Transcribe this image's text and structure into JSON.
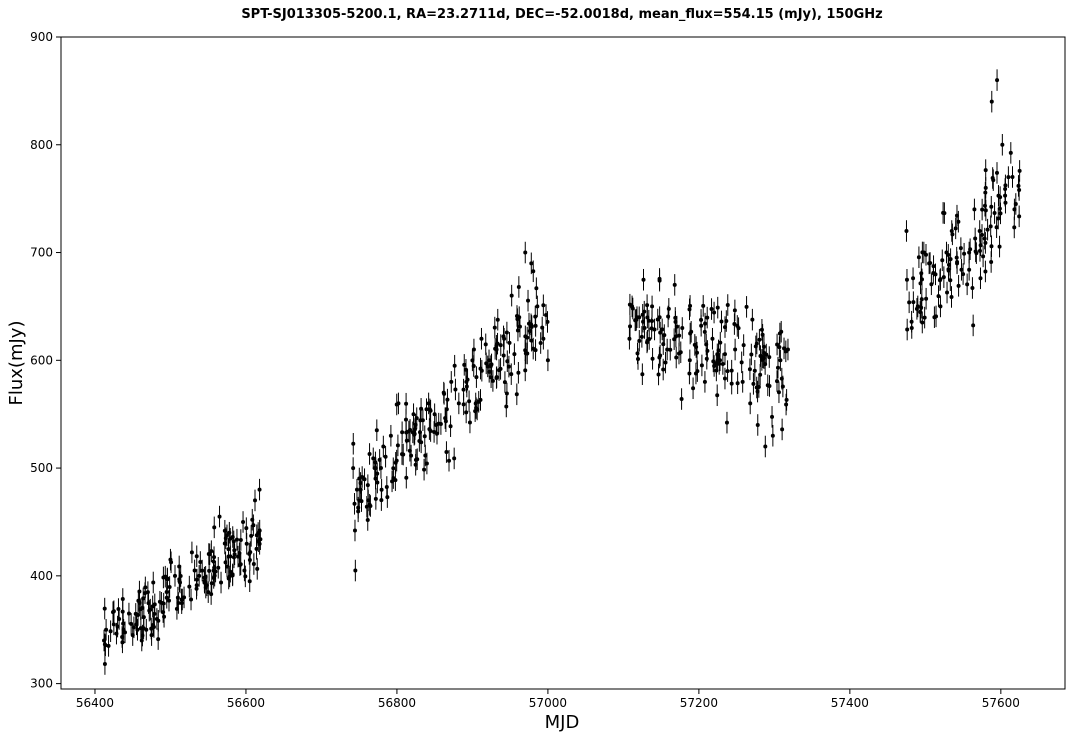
{
  "chart_data": {
    "type": "scatter",
    "title": "SPT-SJ013305-5200.1, RA=23.2711d, DEC=-52.0018d, mean_flux=554.15 (mJy), 150GHz",
    "xlabel": "MJD",
    "ylabel": "Flux(mJy)",
    "xlim": [
      56355,
      57685
    ],
    "ylim": [
      295,
      900
    ],
    "xticks": [
      56400,
      56600,
      56800,
      57000,
      57200,
      57400,
      57600
    ],
    "yticks": [
      300,
      400,
      500,
      600,
      700,
      800,
      900
    ],
    "grid": false,
    "marker_color": "#000000",
    "error_bar": "approximately ±10 mJy per point",
    "segments": [
      {
        "x_start": 56412,
        "x_end": 56620,
        "y_start": 340,
        "y_end": 440,
        "spread": 25
      },
      {
        "x_start": 56742,
        "x_end": 57000,
        "y_start": 470,
        "y_end": 640,
        "spread": 35
      },
      {
        "x_start": 57108,
        "x_end": 57322,
        "y_start": 630,
        "y_end": 590,
        "spread": 40
      },
      {
        "x_start": 57475,
        "x_end": 57625,
        "y_start": 640,
        "y_end": 760,
        "spread": 50
      }
    ],
    "series": [
      {
        "x": [
          56412,
          56418,
          56425,
          56432,
          56438,
          56445,
          56450,
          56455,
          56462,
          56468,
          56475,
          56482,
          56488,
          56495,
          56500,
          56506,
          56512,
          56518,
          56525,
          56532,
          56538,
          56545,
          56552,
          56558,
          56565,
          56572,
          56578,
          56585,
          56592,
          56598,
          56605,
          56612,
          56618,
          56742,
          56752,
          56762,
          56772,
          56782,
          56792,
          56802,
          56812,
          56822,
          56832,
          56842,
          56852,
          56862,
          56872,
          56882,
          56892,
          56902,
          56912,
          56922,
          56932,
          56942,
          56952,
          56962,
          56970,
          56978,
          56986,
          56994,
          57000,
          57108,
          57118,
          57128,
          57138,
          57148,
          57158,
          57168,
          57178,
          57188,
          57198,
          57208,
          57218,
          57228,
          57238,
          57248,
          57258,
          57268,
          57278,
          57288,
          57298,
          57308,
          57318,
          57475,
          57482,
          57490,
          57498,
          57505,
          57512,
          57520,
          57528,
          57535,
          57542,
          57550,
          57558,
          57565,
          57572,
          57580,
          57588,
          57595,
          57602,
          57610,
          57618
        ],
        "y": [
          340,
          335,
          355,
          360,
          350,
          365,
          345,
          355,
          340,
          350,
          345,
          360,
          375,
          385,
          415,
          400,
          395,
          380,
          390,
          405,
          400,
          395,
          420,
          445,
          455,
          430,
          440,
          420,
          410,
          405,
          395,
          470,
          480,
          500,
          480,
          470,
          500,
          520,
          530,
          560,
          545,
          550,
          555,
          560,
          540,
          570,
          580,
          560,
          580,
          610,
          620,
          600,
          610,
          620,
          660,
          640,
          700,
          690,
          650,
          620,
          600,
          620,
          640,
          630,
          650,
          640,
          610,
          670,
          630,
          600,
          590,
          580,
          620,
          600,
          590,
          610,
          580,
          560,
          540,
          520,
          530,
          600,
          610,
          720,
          630,
          650,
          700,
          690,
          640,
          650,
          700,
          720,
          690,
          680,
          700,
          740,
          720,
          760,
          840,
          860,
          800,
          770,
          740
        ]
      }
    ]
  }
}
